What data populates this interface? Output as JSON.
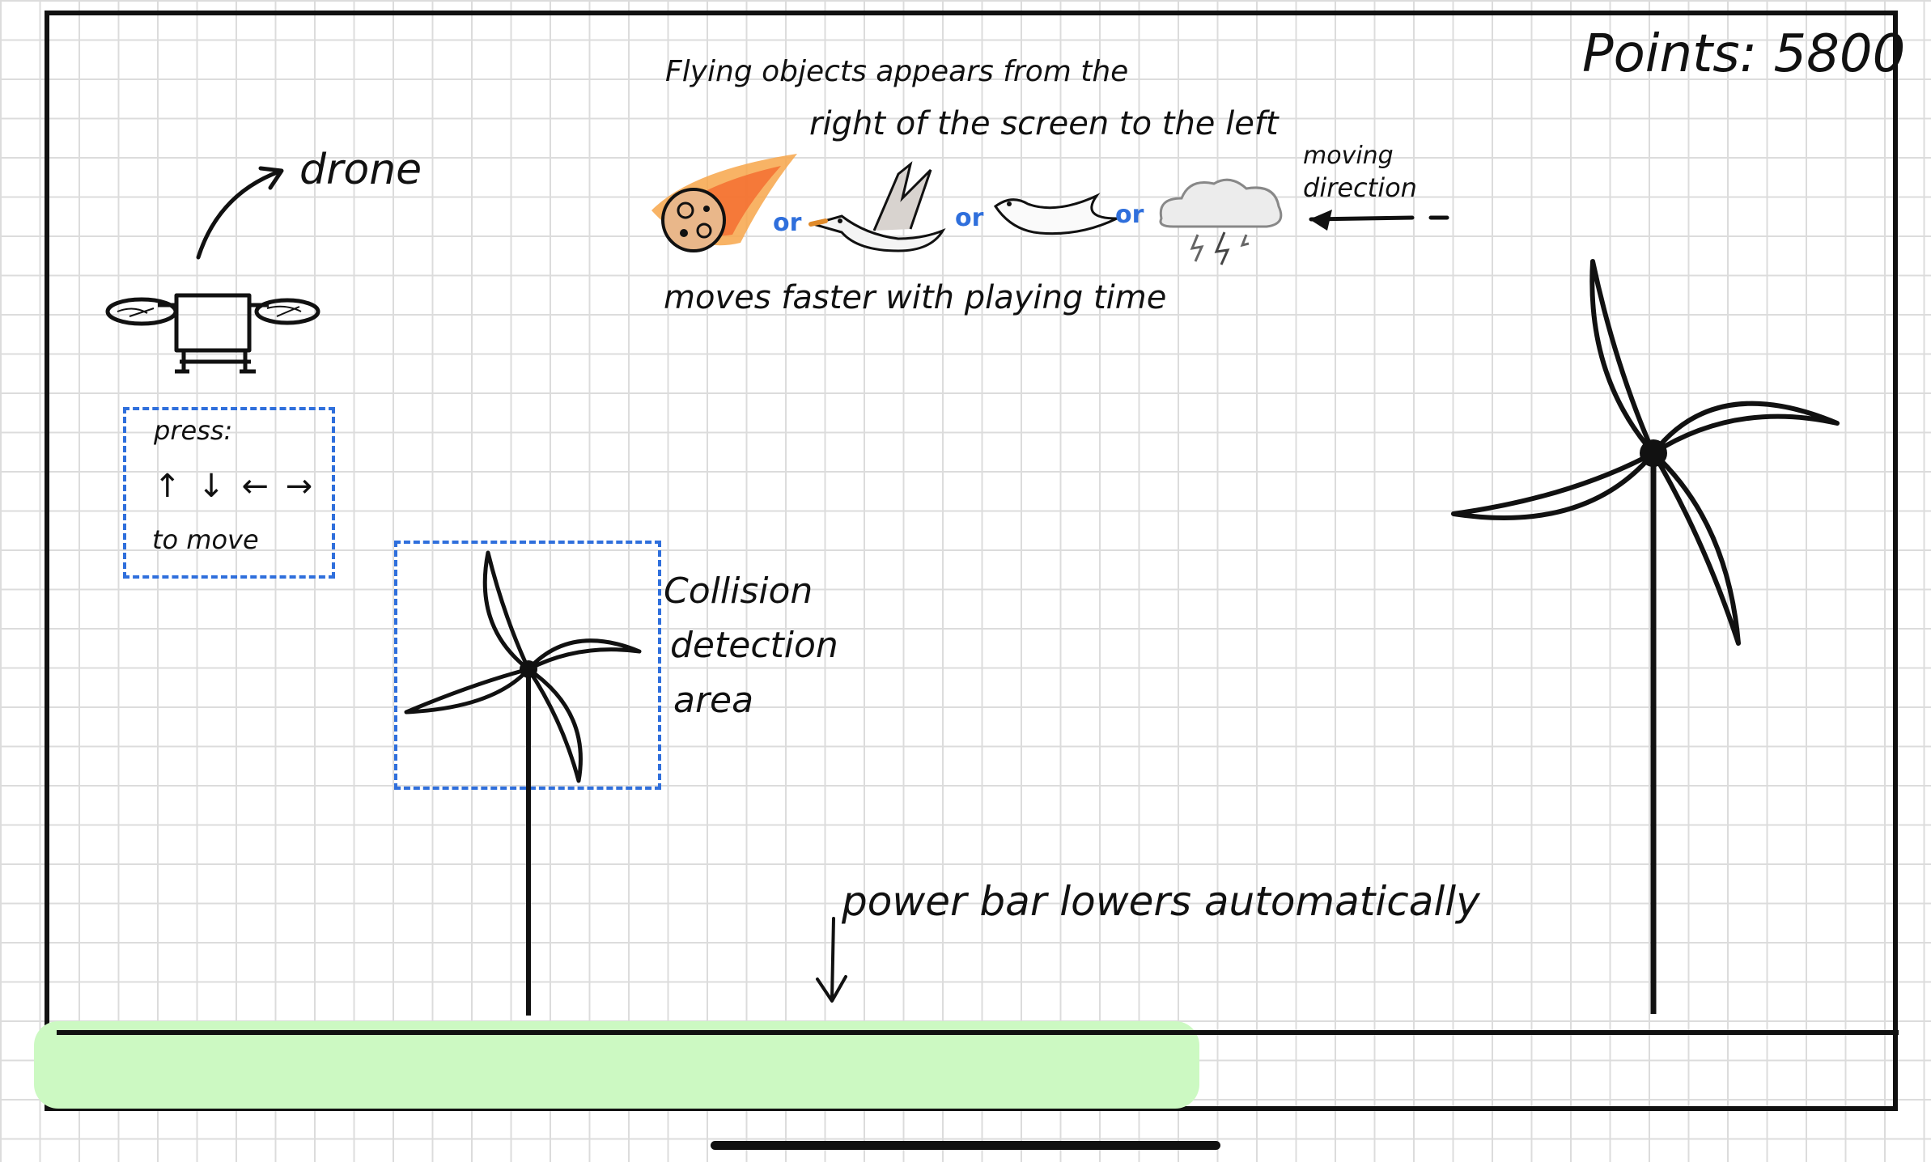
{
  "score": {
    "label": "Points:",
    "value": "5800"
  },
  "annotations": {
    "drone_label": "drone",
    "controls": {
      "line1": "press:",
      "arrows": "↑ ↓ ← →",
      "line3": "to move"
    },
    "flying_objects_line1": "Flying objects appears from the",
    "flying_objects_line2": "right of the screen to the left",
    "moving_direction_line1": "moving",
    "moving_direction_line2": "direction",
    "speed_note": "moves faster with playing time",
    "collision_line1": "Collision",
    "collision_line2": "detection",
    "collision_line3": "area",
    "power_bar_note": "power bar lowers automatically",
    "or_label": "or"
  },
  "flying_objects": [
    "meteor-icon",
    "goose-icon",
    "dove-icon",
    "storm-cloud-icon"
  ],
  "power_bar": {
    "level": 0.6,
    "color": "#ccf9c2"
  },
  "colors": {
    "stroke": "#111111",
    "accent_blue": "#2f6fdc",
    "grid": "#dcdcdc"
  }
}
